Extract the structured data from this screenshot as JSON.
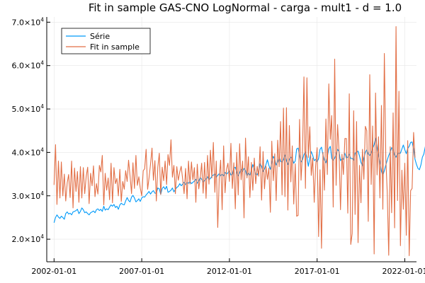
{
  "chart_data": {
    "type": "line",
    "title": "Fit in sample GAS-CNO LogNormal - carga - mult1 - d = 1.0",
    "xlabel": "",
    "ylabel": "",
    "x_axis": {
      "kind": "date",
      "range": [
        "2001-08-01",
        "2022-09-01"
      ],
      "ticks": [
        "2002-01-01",
        "2007-01-01",
        "2012-01-01",
        "2017-01-01",
        "2022-01-01"
      ]
    },
    "y_axis": {
      "range": [
        14800,
        71200
      ],
      "ticks": [
        {
          "value": 20000,
          "mantissa": "2.0×10",
          "exp": "4"
        },
        {
          "value": 30000,
          "mantissa": "3.0×10",
          "exp": "4"
        },
        {
          "value": 40000,
          "mantissa": "4.0×10",
          "exp": "4"
        },
        {
          "value": 50000,
          "mantissa": "5.0×10",
          "exp": "4"
        },
        {
          "value": 60000,
          "mantissa": "6.0×10",
          "exp": "4"
        },
        {
          "value": 70000,
          "mantissa": "7.0×10",
          "exp": "4"
        }
      ]
    },
    "grid": true,
    "legend_position": "top-left",
    "start": "2002-01",
    "frequency": "monthly",
    "series": [
      {
        "name": "Série",
        "color": "#009af9",
        "values": [
          23800,
          25000,
          25600,
          25100,
          24800,
          25300,
          25000,
          24600,
          25900,
          26300,
          25800,
          26000,
          25600,
          26300,
          26400,
          26600,
          26900,
          25900,
          26400,
          27200,
          26800,
          26100,
          26300,
          25900,
          25600,
          26100,
          26300,
          26500,
          26100,
          26800,
          27000,
          26600,
          26900,
          26400,
          27600,
          26700,
          27000,
          26800,
          27400,
          27900,
          27600,
          28000,
          27300,
          27600,
          26900,
          27900,
          28300,
          28000,
          27900,
          28800,
          29600,
          28900,
          28600,
          29700,
          30100,
          29500,
          28600,
          28900,
          29300,
          28700,
          29500,
          29800,
          29700,
          30200,
          30600,
          31000,
          30400,
          30900,
          31200,
          30600,
          30600,
          31800,
          31600,
          30300,
          31700,
          32100,
          31500,
          32200,
          30800,
          31000,
          31300,
          31800,
          30900,
          31500,
          31900,
          32200,
          32800,
          32300,
          32700,
          33100,
          32600,
          33000,
          32900,
          33300,
          32800,
          33100,
          33400,
          33800,
          32900,
          33400,
          34200,
          33800,
          33200,
          33500,
          33900,
          34400,
          33700,
          34000,
          34500,
          34800,
          35000,
          34300,
          34700,
          35100,
          34600,
          34900,
          34600,
          35400,
          35000,
          35300,
          35700,
          34800,
          35000,
          36300,
          36600,
          35400,
          34600,
          35300,
          36100,
          35600,
          36300,
          35800,
          34500,
          35200,
          34800,
          35900,
          37200,
          36200,
          35000,
          34800,
          35600,
          37400,
          36800,
          35600,
          36200,
          37200,
          38300,
          37000,
          36100,
          37600,
          39100,
          38400,
          37100,
          37800,
          38900,
          37900,
          37800,
          38300,
          39400,
          38100,
          37200,
          38400,
          38900,
          38600,
          37500,
          38000,
          40800,
          41000,
          39200,
          37800,
          38300,
          39500,
          40100,
          38900,
          36800,
          38700,
          40200,
          39300,
          38100,
          38400,
          37800,
          38600,
          40700,
          41200,
          39400,
          38200,
          37600,
          39100,
          40800,
          41400,
          38600,
          38200,
          38700,
          39600,
          40700,
          40200,
          38100,
          38600,
          38400,
          39800,
          38700,
          38900,
          39600,
          38600,
          38600,
          38200,
          39800,
          40100,
          40300,
          39200,
          37700,
          36900,
          38700,
          40000,
          40600,
          39600,
          39300,
          39900,
          40900,
          41800,
          43300,
          41200,
          39200,
          37600,
          35700,
          34700,
          35800,
          37100,
          38200,
          39300,
          40100,
          41100,
          40600,
          39400,
          38900,
          39700,
          39800,
          39800,
          40800,
          41700,
          40600,
          39700,
          40900,
          41400,
          42300,
          42400,
          40800,
          38400,
          37200,
          36300,
          36000,
          37100,
          38900,
          39600,
          41300,
          42700,
          44800,
          42300,
          39300,
          38100
        ]
      },
      {
        "name": "Fit in sample",
        "color": "#e26f46",
        "values": [
          32500,
          41800,
          28000,
          38000,
          29500,
          37800,
          30000,
          35000,
          28800,
          33000,
          34900,
          29600,
          38000,
          27200,
          36400,
          31000,
          35600,
          28500,
          36700,
          29500,
          36500,
          30500,
          34500,
          36600,
          28200,
          35200,
          32300,
          36900,
          29800,
          32800,
          30400,
          37000,
          35500,
          39300,
          27900,
          35200,
          31300,
          34100,
          29100,
          37500,
          28400,
          36500,
          32800,
          34000,
          30000,
          36100,
          28700,
          33300,
          31500,
          35800,
          33300,
          38200,
          34600,
          30500,
          37600,
          31700,
          39300,
          32400,
          34400,
          31800,
          30000,
          35800,
          36200,
          40700,
          31500,
          34100,
          37300,
          41000,
          33600,
          38100,
          28800,
          36600,
          39800,
          30300,
          36600,
          33500,
          38000,
          32600,
          39500,
          37000,
          42900,
          34300,
          37000,
          30500,
          36700,
          33600,
          35500,
          36800,
          33800,
          30500,
          36300,
          29300,
          38000,
          32700,
          37800,
          33700,
          36500,
          28500,
          37300,
          31600,
          34000,
          37500,
          30600,
          37700,
          29400,
          39300,
          32700,
          40500,
          34100,
          42300,
          30800,
          38000,
          22700,
          34000,
          38200,
          26800,
          41500,
          30700,
          36100,
          37500,
          33300,
          42100,
          31700,
          37600,
          27000,
          40000,
          30200,
          42000,
          33700,
          38000,
          24900,
          43300,
          34100,
          39000,
          29600,
          37700,
          31300,
          38700,
          32800,
          36800,
          34500,
          41300,
          29000,
          40200,
          31600,
          36800,
          33800,
          36400,
          26200,
          42600,
          33500,
          39700,
          28900,
          42800,
          36700,
          47100,
          30200,
          50200,
          29800,
          50300,
          26700,
          46200,
          33200,
          41500,
          28100,
          37400,
          25300,
          25500,
          47600,
          33600,
          40000,
          57400,
          31700,
          57200,
          38800,
          45900,
          34700,
          38700,
          28500,
          36800,
          41100,
          20600,
          36000,
          17900,
          40000,
          31300,
          47700,
          34900,
          55800,
          43000,
          48500,
          27400,
          61500,
          32400,
          46400,
          40400,
          26800,
          39600,
          34900,
          43200,
          43200,
          26000,
          53500,
          18800,
          21300,
          49600,
          25700,
          47100,
          19200,
          37000,
          28400,
          40700,
          33800,
          46000,
          45000,
          24100,
          57900,
          32600,
          46100,
          16600,
          53700,
          34800,
          43600,
          29500,
          50800,
          26900,
          62800,
          38400,
          30800,
          16300,
          41300,
          26100,
          49100,
          22600,
          69000,
          28900,
          54100,
          18500,
          35900,
          26900,
          37500,
          20900,
          42700,
          16200,
          31200,
          31700,
          44600,
          38800
        ]
      }
    ]
  }
}
